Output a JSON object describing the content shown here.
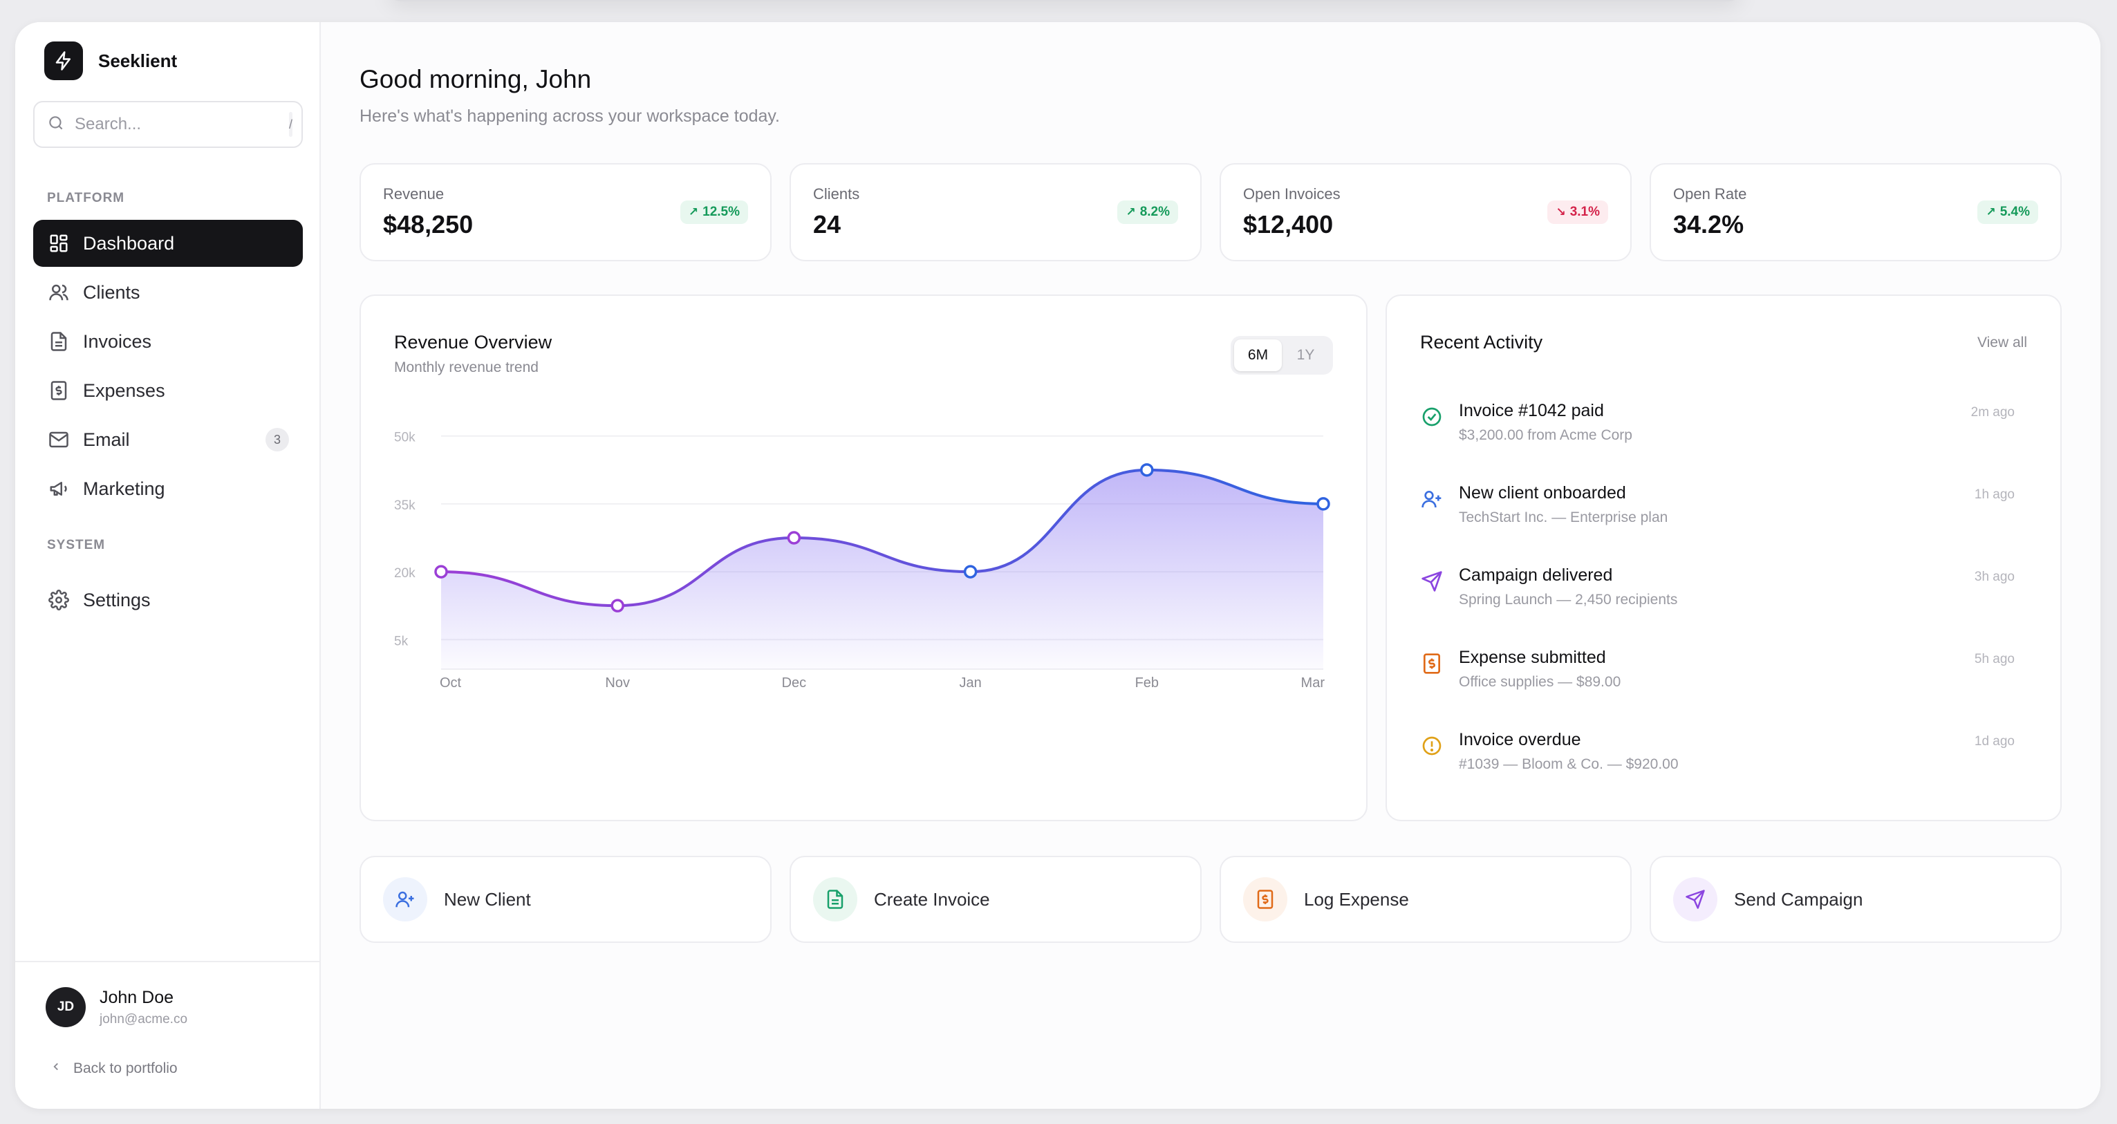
{
  "brand": {
    "name": "Seeklient"
  },
  "search": {
    "placeholder": "Search...",
    "shortcut": "/"
  },
  "sidebar": {
    "platform_label": "PLATFORM",
    "system_label": "SYSTEM",
    "items": [
      {
        "label": "Dashboard",
        "icon": "dashboard-icon",
        "active": true
      },
      {
        "label": "Clients",
        "icon": "users-icon"
      },
      {
        "label": "Invoices",
        "icon": "file-icon"
      },
      {
        "label": "Expenses",
        "icon": "receipt-dollar-icon"
      },
      {
        "label": "Email",
        "icon": "mail-icon",
        "badge": "3"
      },
      {
        "label": "Marketing",
        "icon": "megaphone-icon"
      }
    ],
    "system_items": [
      {
        "label": "Settings",
        "icon": "gear-icon"
      }
    ]
  },
  "user": {
    "initials": "JD",
    "name": "John Doe",
    "email": "john@acme.co"
  },
  "back_link": {
    "label": "Back to portfolio"
  },
  "header": {
    "greeting": "Good morning, John",
    "subtitle": "Here's what's happening across your workspace today."
  },
  "stats": [
    {
      "title": "Revenue",
      "value": "$48,250",
      "delta": "12.5%",
      "direction": "up"
    },
    {
      "title": "Clients",
      "value": "24",
      "delta": "8.2%",
      "direction": "up"
    },
    {
      "title": "Open Invoices",
      "value": "$12,400",
      "delta": "3.1%",
      "direction": "down"
    },
    {
      "title": "Open Rate",
      "value": "34.2%",
      "delta": "5.4%",
      "direction": "up"
    }
  ],
  "revenue": {
    "title": "Revenue Overview",
    "subtitle": "Monthly revenue trend",
    "range_options": [
      "6M",
      "1Y"
    ],
    "range_selected": "6M"
  },
  "chart_data": {
    "type": "area",
    "categories": [
      "Oct",
      "Nov",
      "Dec",
      "Jan",
      "Feb",
      "Mar"
    ],
    "series": [
      {
        "values": [
          20000,
          12500,
          27500,
          20000,
          42500,
          35000
        ]
      }
    ],
    "yticks": [
      "50k",
      "35k",
      "20k",
      "5k"
    ],
    "ylim": [
      0,
      55000
    ],
    "grid": true,
    "colors": {
      "line_start": "#9b3fd6",
      "line_end": "#2f63e0",
      "fill": "#8f7cf2"
    }
  },
  "activity": {
    "title": "Recent Activity",
    "view_all": "View all",
    "items": [
      {
        "title": "Invoice #1042 paid",
        "desc": "$3,200.00 from Acme Corp",
        "time": "2m ago",
        "icon": "check-circle-icon",
        "color": "#18a06b"
      },
      {
        "title": "New client onboarded",
        "desc": "TechStart Inc. — Enterprise plan",
        "time": "1h ago",
        "icon": "user-plus-icon",
        "color": "#3b6fe0"
      },
      {
        "title": "Campaign delivered",
        "desc": "Spring Launch — 2,450 recipients",
        "time": "3h ago",
        "icon": "send-icon",
        "color": "#8b45e0"
      },
      {
        "title": "Expense submitted",
        "desc": "Office supplies — $89.00",
        "time": "5h ago",
        "icon": "receipt-dollar-icon",
        "color": "#e06a18"
      },
      {
        "title": "Invoice overdue",
        "desc": "#1039 — Bloom & Co. — $920.00",
        "time": "1d ago",
        "icon": "alert-circle-icon",
        "color": "#e0a118"
      }
    ]
  },
  "quick_actions": [
    {
      "label": "New Client",
      "icon": "user-plus-icon",
      "color": "#3b6fe0",
      "bg": "#eef3fd"
    },
    {
      "label": "Create Invoice",
      "icon": "file-text-icon",
      "color": "#18a06b",
      "bg": "#eaf7f0"
    },
    {
      "label": "Log Expense",
      "icon": "receipt-dollar-icon",
      "color": "#e06a18",
      "bg": "#fdf2ea"
    },
    {
      "label": "Send Campaign",
      "icon": "send-icon",
      "color": "#8b45e0",
      "bg": "#f4edfd"
    }
  ]
}
